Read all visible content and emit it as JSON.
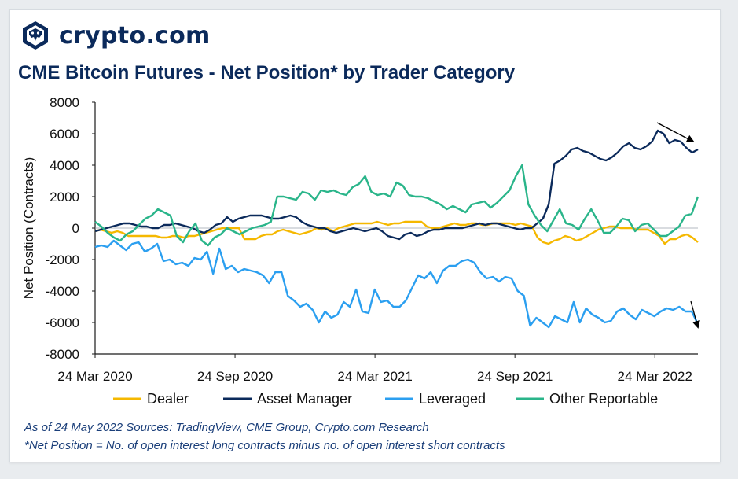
{
  "brand": {
    "name": "crypto.com",
    "logo_icon": "crypto-com-lion-shield-icon"
  },
  "title": "CME Bitcoin Futures - Net Position* by Trader Category",
  "notes": {
    "line1": "As of 24 May 2022    Sources: TradingView, CME Group, Crypto.com Research",
    "line2": "*Net Position = No. of open interest long contracts minus no. of open interest short contracts"
  },
  "chart_data": {
    "type": "line",
    "ylabel": "Net Position (Contracts)",
    "ylim": [
      -8000,
      8000
    ],
    "yticks": [
      8000,
      6000,
      4000,
      2000,
      0,
      -2000,
      -4000,
      -6000,
      -8000
    ],
    "xlim": [
      0,
      112
    ],
    "xticks": [
      {
        "label": "24 Mar 2020",
        "x": 0
      },
      {
        "label": "24 Sep 2020",
        "x": 26
      },
      {
        "label": "24 Mar 2021",
        "x": 52
      },
      {
        "label": "24 Sep 2021",
        "x": 78
      },
      {
        "label": "24 Mar 2022",
        "x": 104
      }
    ],
    "legend_position": "bottom",
    "grid": false,
    "series": [
      {
        "name": "Dealer",
        "color": "#f5b800",
        "values": [
          -200,
          -100,
          -200,
          -300,
          -200,
          -300,
          -500,
          -500,
          -500,
          -500,
          -500,
          -500,
          -600,
          -600,
          -500,
          -500,
          -600,
          -500,
          -500,
          -400,
          -300,
          -200,
          -100,
          0,
          0,
          0,
          0,
          -700,
          -700,
          -700,
          -500,
          -400,
          -400,
          -200,
          -100,
          -200,
          -300,
          -400,
          -300,
          -200,
          0,
          -100,
          0,
          -200,
          0,
          100,
          200,
          300,
          300,
          300,
          300,
          400,
          300,
          200,
          300,
          300,
          400,
          400,
          400,
          400,
          100,
          0,
          0,
          100,
          200,
          300,
          200,
          200,
          300,
          300,
          200,
          200,
          300,
          300,
          300,
          300,
          200,
          300,
          200,
          100,
          -600,
          -900,
          -1000,
          -800,
          -700,
          -500,
          -600,
          -800,
          -700,
          -500,
          -300,
          -100,
          0,
          100,
          100,
          0,
          0,
          0,
          -100,
          -100,
          -100,
          -300,
          -500,
          -1000,
          -700,
          -700,
          -500,
          -400,
          -600,
          -900
        ]
      },
      {
        "name": "Asset Manager",
        "color": "#0b2a5b",
        "values": [
          -200,
          -100,
          0,
          100,
          200,
          300,
          300,
          200,
          100,
          100,
          0,
          0,
          200,
          200,
          300,
          200,
          100,
          0,
          -200,
          -300,
          -100,
          200,
          300,
          700,
          400,
          600,
          700,
          800,
          800,
          800,
          700,
          600,
          600,
          700,
          800,
          700,
          400,
          200,
          100,
          0,
          0,
          -200,
          -300,
          -200,
          -100,
          0,
          -100,
          -200,
          -100,
          0,
          -200,
          -500,
          -600,
          -700,
          -400,
          -300,
          -500,
          -400,
          -200,
          -100,
          -100,
          0,
          0,
          0,
          0,
          100,
          200,
          300,
          200,
          300,
          300,
          200,
          100,
          0,
          -100,
          0,
          0,
          300,
          600,
          1500,
          4100,
          4300,
          4600,
          5000,
          5100,
          4900,
          4800,
          4600,
          4400,
          4300,
          4500,
          4800,
          5200,
          5400,
          5100,
          5000,
          5200,
          5500,
          6200,
          6000,
          5400,
          5600,
          5500,
          5100,
          4800,
          5000
        ]
      },
      {
        "name": "Leveraged",
        "color": "#2b9ff0",
        "values": [
          -1200,
          -1100,
          -1200,
          -800,
          -1100,
          -1400,
          -1000,
          -900,
          -1500,
          -1300,
          -1000,
          -2100,
          -2000,
          -2300,
          -2200,
          -2400,
          -1900,
          -2000,
          -1500,
          -2900,
          -1300,
          -2600,
          -2400,
          -2800,
          -2600,
          -2700,
          -2800,
          -3000,
          -3500,
          -2800,
          -2800,
          -4300,
          -4600,
          -5000,
          -4800,
          -5200,
          -6000,
          -5300,
          -5700,
          -5500,
          -4700,
          -5000,
          -3900,
          -5300,
          -5400,
          -3900,
          -4700,
          -4600,
          -5000,
          -5000,
          -4600,
          -3800,
          -3000,
          -3200,
          -2800,
          -3500,
          -2700,
          -2400,
          -2400,
          -2100,
          -2000,
          -2200,
          -2800,
          -3200,
          -3100,
          -3400,
          -3100,
          -3200,
          -4000,
          -4300,
          -6200,
          -5700,
          -6000,
          -6300,
          -5600,
          -5800,
          -6000,
          -4700,
          -6000,
          -5100,
          -5500,
          -5700,
          -6000,
          -5900,
          -5300,
          -5100,
          -5500,
          -5800,
          -5200,
          -5400,
          -5600,
          -5300,
          -5100,
          -5200,
          -5000,
          -5300,
          -5300,
          -6100
        ],
        "x_start": 0,
        "x_end": 112
      },
      {
        "name": "Other Reportable",
        "color": "#2ab58a",
        "values": [
          400,
          100,
          -300,
          -600,
          -800,
          -400,
          -200,
          200,
          600,
          800,
          1200,
          1000,
          800,
          -500,
          -900,
          -200,
          300,
          -800,
          -1100,
          -600,
          -400,
          0,
          -200,
          -400,
          -200,
          0,
          100,
          200,
          400,
          2000,
          2000,
          1900,
          1800,
          2300,
          2200,
          1800,
          2400,
          2300,
          2400,
          2200,
          2100,
          2600,
          2800,
          3300,
          2300,
          2100,
          2200,
          2000,
          2900,
          2700,
          2100,
          2000,
          2000,
          1900,
          1700,
          1500,
          1200,
          1400,
          1200,
          1000,
          1500,
          1600,
          1700,
          1300,
          1600,
          2000,
          2400,
          3300,
          4000,
          1500,
          800,
          200,
          -200,
          500,
          1200,
          300,
          200,
          -100,
          600,
          1200,
          500,
          -300,
          -300,
          100,
          600,
          500,
          -200,
          200,
          300,
          -100,
          -500,
          -500,
          -200,
          100,
          800,
          900,
          2000
        ]
      }
    ],
    "annotations": [
      {
        "type": "arrow",
        "direction": "down-right",
        "near_series": "Asset Manager"
      },
      {
        "type": "arrow",
        "direction": "down",
        "near_series": "Leveraged"
      }
    ]
  }
}
